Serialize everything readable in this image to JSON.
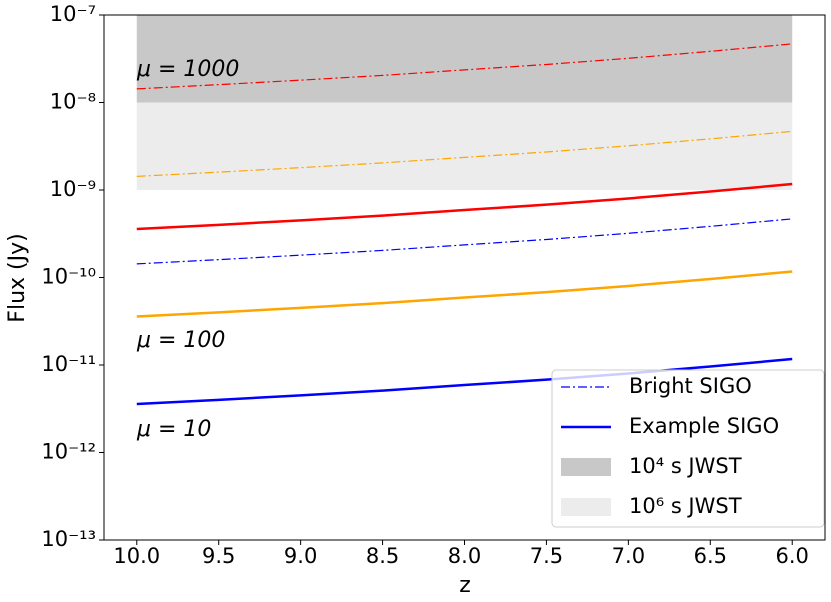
{
  "chart_data": {
    "type": "line",
    "xlabel": "z",
    "ylabel": "Flux (Jy)",
    "x": [
      10,
      9.5,
      9,
      8.5,
      8,
      7.5,
      7,
      6.5,
      6
    ],
    "xlim": [
      10.2,
      5.8
    ],
    "xticks": [
      {
        "value": 10,
        "label": "10.0"
      },
      9.5,
      {
        "value": 9,
        "label": "9.0"
      },
      8.5,
      {
        "value": 8,
        "label": "8.0"
      },
      7.5,
      {
        "value": 7,
        "label": "7.0"
      },
      6.5,
      {
        "value": 6,
        "label": "6.0"
      }
    ],
    "ylim": [
      1e-13,
      1e-07
    ],
    "log_y": true,
    "yticks": [
      {
        "value": 1e-13,
        "label": "10⁻¹³"
      },
      {
        "value": 1e-12,
        "label": "10⁻¹²"
      },
      {
        "value": 1e-11,
        "label": "10⁻¹¹"
      },
      {
        "value": 1e-10,
        "label": "10⁻¹⁰"
      },
      {
        "value": 1e-09,
        "label": "10⁻⁹"
      },
      {
        "value": 1e-08,
        "label": "10⁻⁸"
      },
      {
        "value": 1e-07,
        "label": "10⁻⁷"
      }
    ],
    "bands": [
      {
        "from": 1e-08,
        "to": 1e-07,
        "color": "#c8c8c8"
      },
      {
        "from": 1e-09,
        "to": 1e-08,
        "color": "#ececec"
      }
    ],
    "series": [
      {
        "color": "#ff0000",
        "style": "dashdot",
        "values": [
          1.43e-08,
          1.6e-08,
          1.8e-08,
          2.04e-08,
          2.36e-08,
          2.72e-08,
          3.2e-08,
          3.84e-08,
          4.68e-08
        ]
      },
      {
        "color": "#ffa500",
        "style": "dashdot",
        "values": [
          1.43e-09,
          1.6e-09,
          1.8e-09,
          2.04e-09,
          2.36e-09,
          2.72e-09,
          3.2e-09,
          3.84e-09,
          4.68e-09
        ]
      },
      {
        "color": "#ff0000",
        "style": "solid",
        "values": [
          3.58e-10,
          4e-10,
          4.5e-10,
          5.1e-10,
          5.9e-10,
          6.8e-10,
          8e-10,
          9.6e-10,
          1.17e-09
        ]
      },
      {
        "color": "#0000ff",
        "style": "dashdot",
        "values": [
          1.43e-10,
          1.6e-10,
          1.8e-10,
          2.04e-10,
          2.36e-10,
          2.72e-10,
          3.2e-10,
          3.84e-10,
          4.68e-10
        ]
      },
      {
        "color": "#ffa500",
        "style": "solid",
        "values": [
          3.58e-11,
          4e-11,
          4.5e-11,
          5.1e-11,
          5.9e-11,
          6.8e-11,
          8e-11,
          9.6e-11,
          1.17e-10
        ]
      },
      {
        "color": "#0000ff",
        "style": "solid",
        "values": [
          3.58e-12,
          4e-12,
          4.5e-12,
          5.1e-12,
          5.9e-12,
          6.8e-12,
          8e-12,
          9.6e-12,
          1.17e-11
        ]
      }
    ],
    "annotations": [
      {
        "text": "μ = 1000",
        "color": "#ff0000"
      },
      {
        "text": "μ = 100",
        "color": "#ffa500"
      },
      {
        "text": "μ = 10",
        "color": "#0000ff"
      }
    ],
    "legend": {
      "loc": "lower right",
      "entries": [
        {
          "label": "Bright SIGO",
          "kind": "dashdot",
          "color": "#0000ff"
        },
        {
          "label": "Example SIGO",
          "kind": "solid",
          "color": "#0000ff"
        },
        {
          "label": "10⁴ s JWST",
          "kind": "patch",
          "color": "#c8c8c8"
        },
        {
          "label": "10⁶ s JWST",
          "kind": "patch",
          "color": "#ececec"
        }
      ]
    }
  }
}
